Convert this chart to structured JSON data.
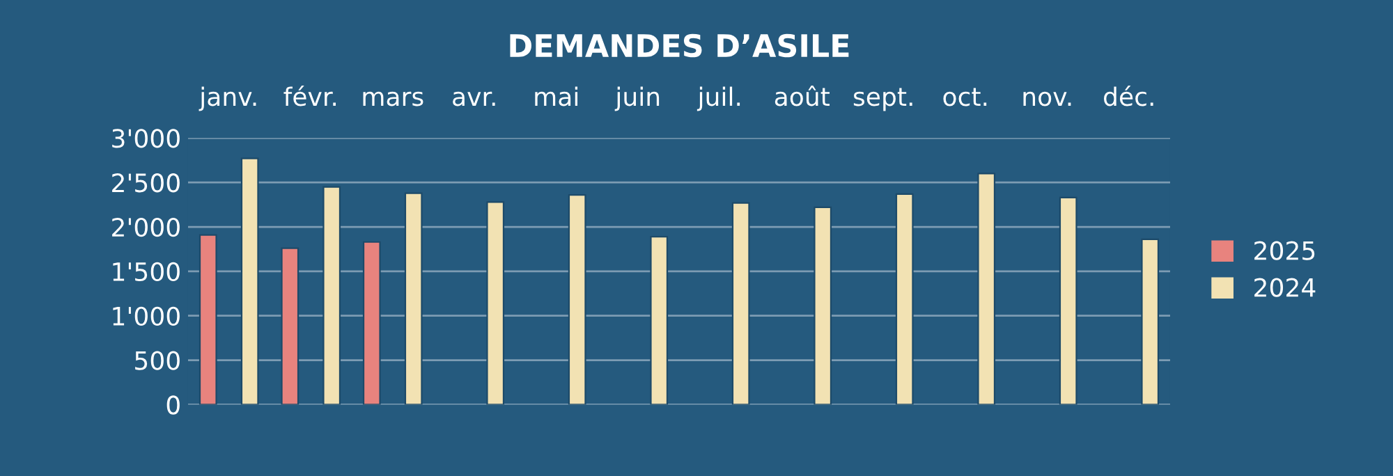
{
  "chart_data": {
    "type": "bar",
    "title": "DEMANDES D’ASILE",
    "categories": [
      "janv.",
      "févr.",
      "mars",
      "avr.",
      "mai",
      "juin",
      "juil.",
      "août",
      "sept.",
      "oct.",
      "nov.",
      "déc."
    ],
    "series": [
      {
        "name": "2025",
        "color": "#e8837e",
        "values": [
          1910,
          1760,
          1830,
          null,
          null,
          null,
          null,
          null,
          null,
          null,
          null,
          null
        ]
      },
      {
        "name": "2024",
        "color": "#f2e2b3",
        "values": [
          2770,
          2450,
          2380,
          2280,
          2360,
          1890,
          2270,
          2220,
          2370,
          2600,
          2330,
          1860
        ]
      }
    ],
    "ylim": [
      0,
      3000
    ],
    "yticks": [
      {
        "value": 0,
        "label": "0"
      },
      {
        "value": 500,
        "label": "500"
      },
      {
        "value": 1000,
        "label": "1'000"
      },
      {
        "value": 1500,
        "label": "1'500"
      },
      {
        "value": 2000,
        "label": "2'000"
      },
      {
        "value": 2500,
        "label": "2'500"
      },
      {
        "value": 3000,
        "label": "3'000"
      }
    ],
    "grid": "y",
    "legend": "right"
  }
}
